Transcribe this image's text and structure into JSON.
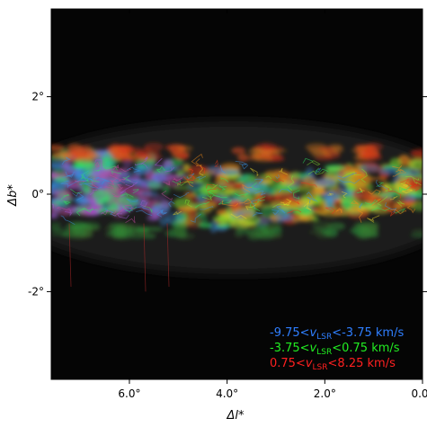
{
  "figure": {
    "xlabel": "Δl*",
    "ylabel": "Δb*",
    "x_ticks": [
      {
        "value": 6.0,
        "label": "6.0°"
      },
      {
        "value": 4.0,
        "label": "4.0°"
      },
      {
        "value": 2.0,
        "label": "2.0°"
      },
      {
        "value": 0.0,
        "label": "0.0°"
      }
    ],
    "y_ticks": [
      {
        "value": 2,
        "label": "2°"
      },
      {
        "value": 0,
        "label": "0°"
      },
      {
        "value": -2,
        "label": "-2°"
      }
    ],
    "x_range": [
      7.6,
      0.0
    ],
    "y_range": [
      -3.8,
      3.8
    ],
    "legend": [
      {
        "pre": "-9.75<",
        "sub": "LSR",
        "post": "<-3.75 km/s",
        "color": "#2f7fff"
      },
      {
        "pre": "-3.75<",
        "sub": "LSR",
        "post": "<0.75 km/s",
        "color": "#22ee22"
      },
      {
        "pre": "0.75<",
        "sub": "LSR",
        "post": "<8.25 km/s",
        "color": "#ff2020"
      }
    ],
    "legend_var": "v",
    "background": "#050505"
  }
}
